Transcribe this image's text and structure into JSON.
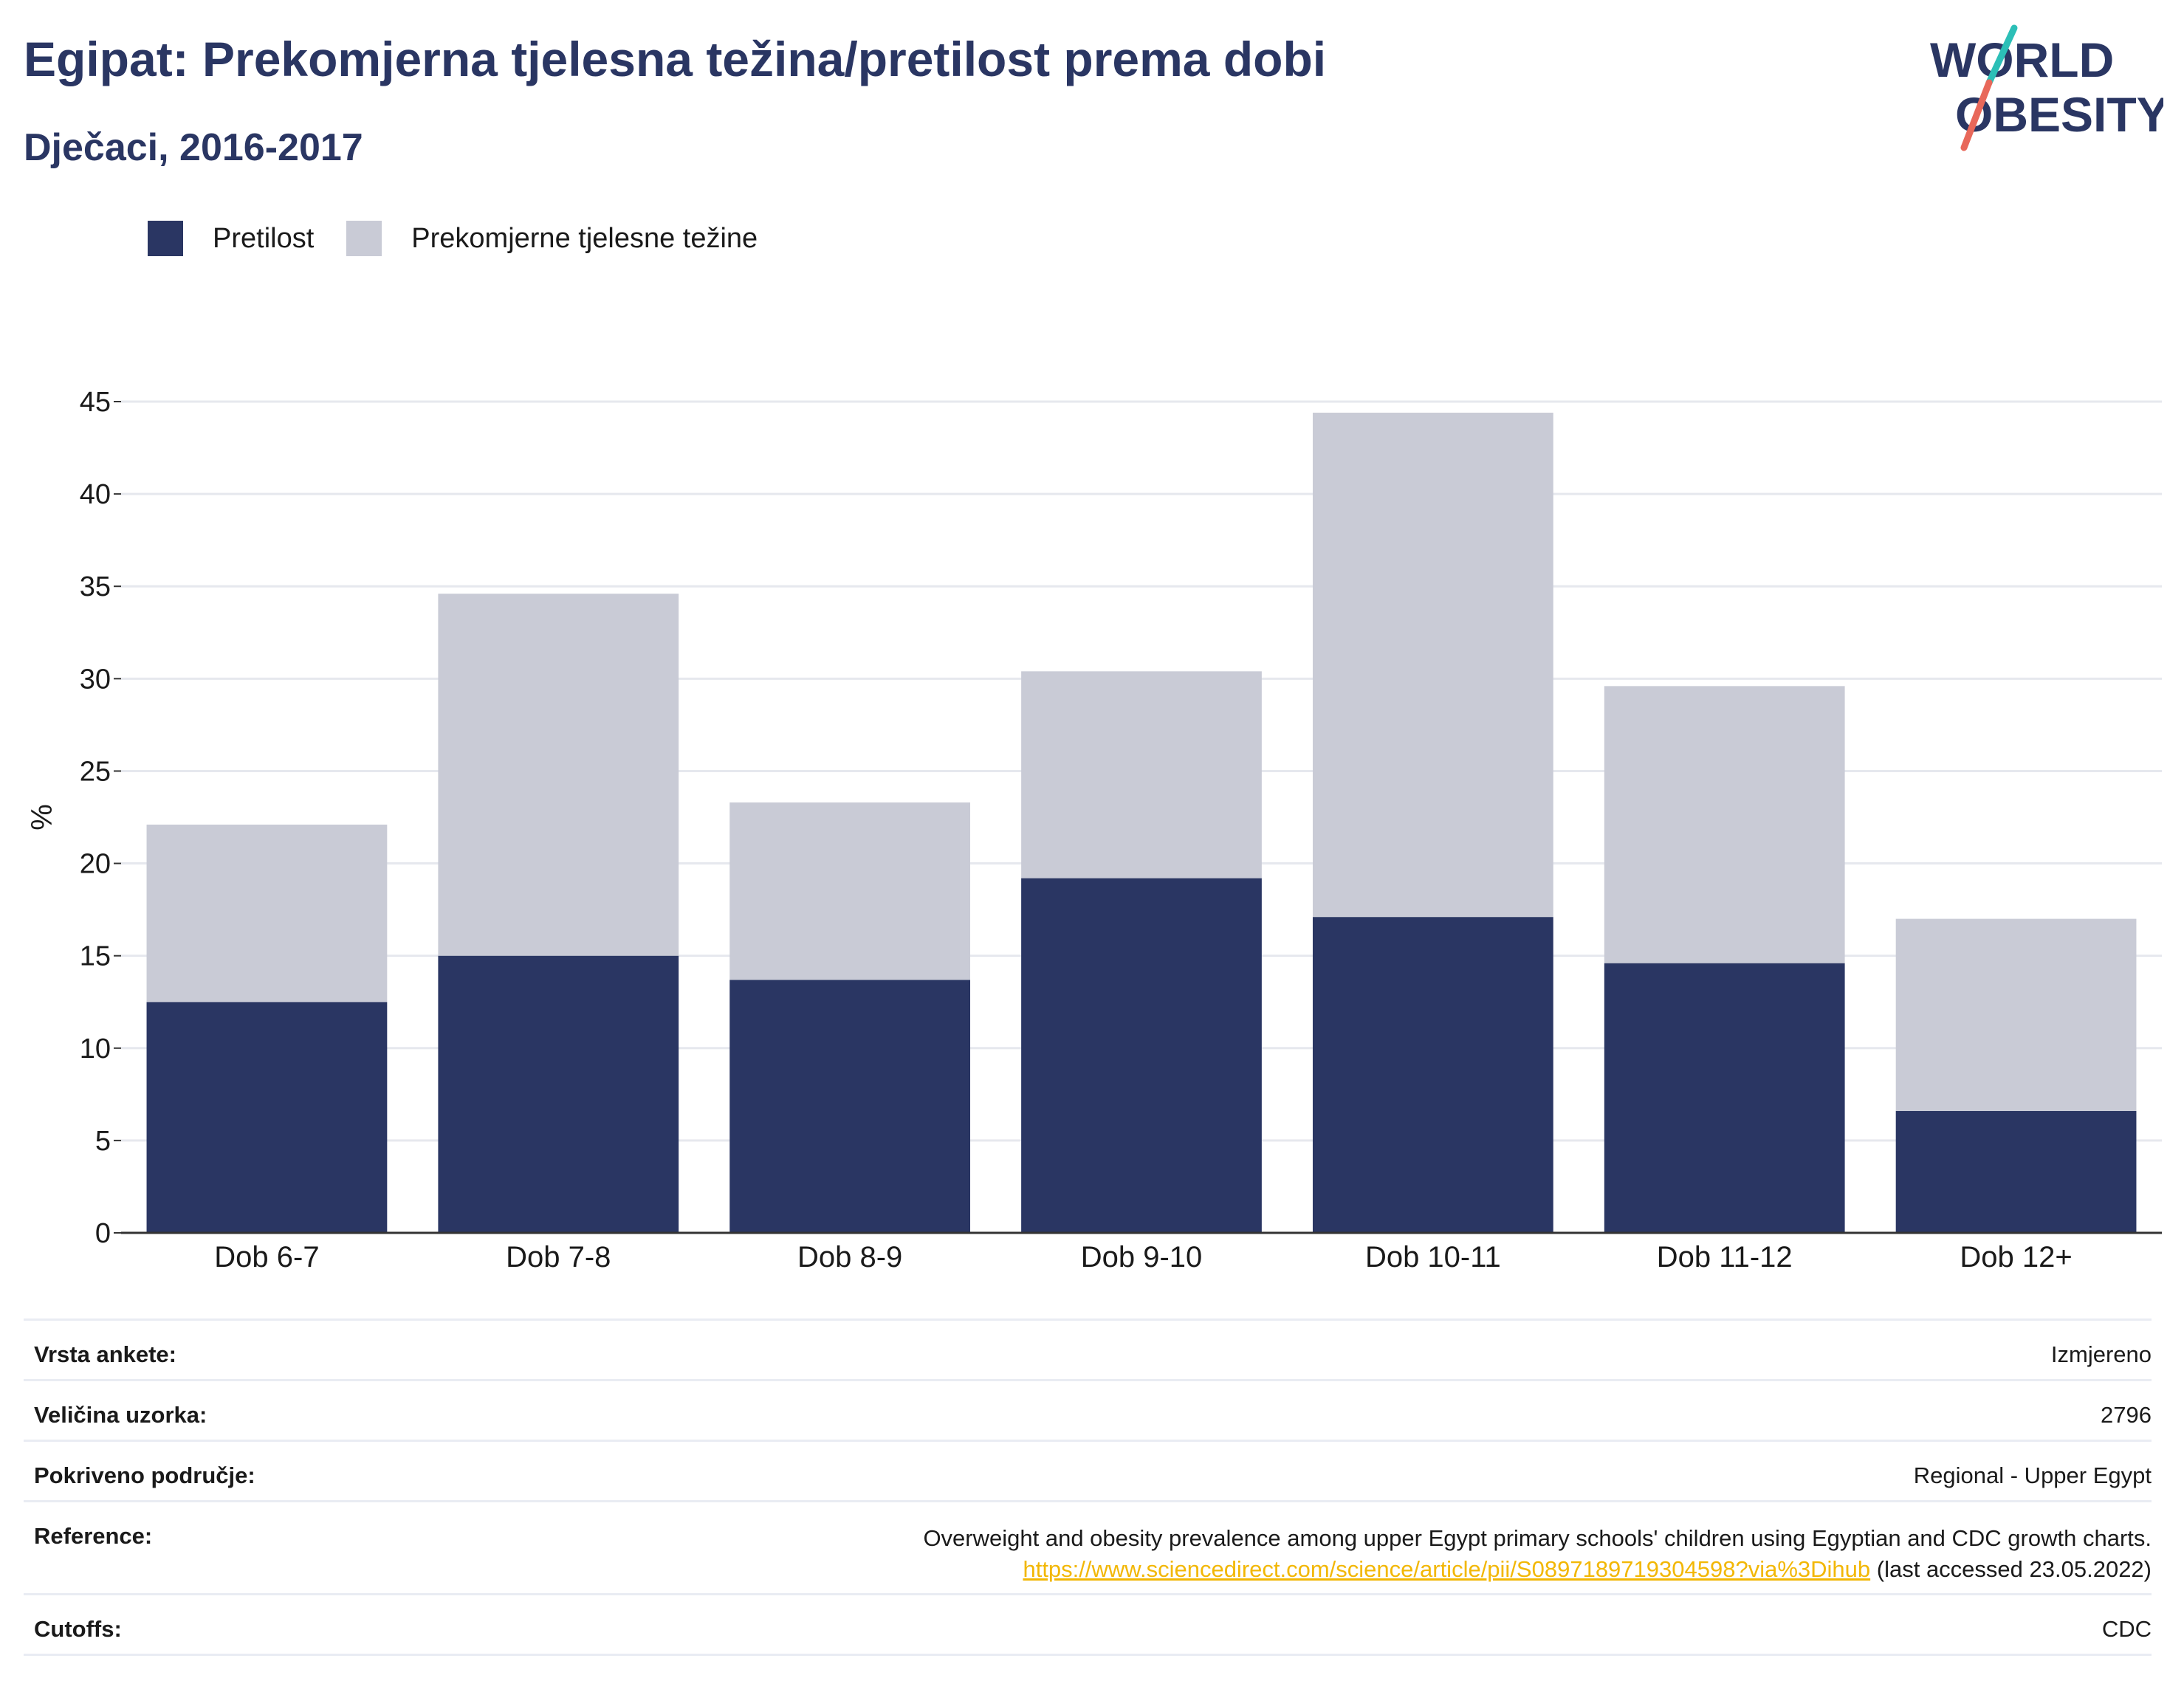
{
  "header": {
    "title": "Egipat: Prekomjerna tjelesna težina/pretilost prema dobi",
    "subtitle": "Dječaci, 2016-2017"
  },
  "logo": {
    "line1": "WORLD",
    "line2": "OBESITY",
    "slash_colors": [
      "#2cbfb7",
      "#e8685a"
    ]
  },
  "legend": {
    "items": [
      {
        "label": "Pretilost",
        "color": "#2a3663"
      },
      {
        "label": "Prekomjerne tjelesne težine",
        "color": "#c9cbd6"
      }
    ]
  },
  "chart_data": {
    "type": "bar",
    "stacked": true,
    "categories": [
      "Dob 6-7",
      "Dob 7-8",
      "Dob 8-9",
      "Dob 9-10",
      "Dob 10-11",
      "Dob 11-12",
      "Dob 12+"
    ],
    "series": [
      {
        "name": "Pretilost",
        "color": "#2a3663",
        "values": [
          12.5,
          15.0,
          13.7,
          19.2,
          17.1,
          14.6,
          6.6
        ]
      },
      {
        "name": "Prekomjerne tjelesne težine",
        "color": "#c9cbd6",
        "values": [
          9.6,
          19.6,
          9.6,
          11.2,
          27.3,
          15.0,
          10.4
        ]
      }
    ],
    "ylabel": "%",
    "ylim": [
      0,
      45
    ],
    "yticks": [
      0,
      5,
      10,
      15,
      20,
      25,
      30,
      35,
      40,
      45
    ],
    "grid": true,
    "legend_position": "top-left"
  },
  "meta": {
    "survey_type": {
      "label": "Vrsta ankete:",
      "value": "Izmjereno"
    },
    "sample_size": {
      "label": "Veličina uzorka:",
      "value": "2796"
    },
    "coverage": {
      "label": "Pokriveno područje:",
      "value": "Regional - Upper Egypt"
    },
    "reference": {
      "label": "Reference:",
      "text": "Overweight and obesity prevalence among upper Egypt primary schools' children using Egyptian and CDC growth charts.",
      "link": "https://www.sciencedirect.com/science/article/pii/S0897189719304598?via%3Dihub",
      "accessed": "(last accessed 23.05.2022)"
    },
    "cutoffs": {
      "label": "Cutoffs:",
      "value": "CDC"
    }
  }
}
